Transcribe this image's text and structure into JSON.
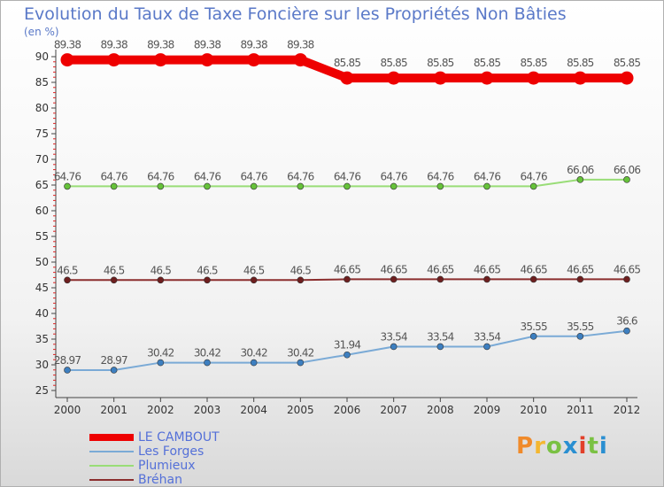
{
  "title": "Evolution du Taux de Taxe Foncière sur les Propriétés Non Bâties",
  "unit_label": "(en %)",
  "logo_text": "Proxiti",
  "chart_data": {
    "type": "line",
    "title": "Evolution du Taux de Taxe Foncière sur les Propriétés Non Bâties",
    "ylabel": "(en %)",
    "xlabel": "",
    "ylim": [
      25,
      90
    ],
    "yticks": [
      25,
      30,
      35,
      40,
      45,
      50,
      55,
      60,
      65,
      70,
      75,
      80,
      85,
      90
    ],
    "grid": false,
    "legend_position": "bottom-left",
    "x": [
      "2000",
      "2001",
      "2002",
      "2003",
      "2004",
      "2005",
      "2006",
      "2007",
      "2008",
      "2009",
      "2010",
      "2011",
      "2012"
    ],
    "series": [
      {
        "name": "LE CAMBOUT",
        "color": "#ee0000",
        "point_color": "#ee0000",
        "values": [
          89.38,
          89.38,
          89.38,
          89.38,
          89.38,
          89.38,
          85.85,
          85.85,
          85.85,
          85.85,
          85.85,
          85.85,
          85.85
        ],
        "labels": [
          "89.38",
          "89.38",
          "89.38",
          "89.38",
          "89.38",
          "89.38",
          "85.85",
          "85.85",
          "85.85",
          "85.85",
          "85.85",
          "85.85",
          "85.85"
        ]
      },
      {
        "name": "Les Forges",
        "color": "#7aaad6",
        "point_color": "#3d7fc0",
        "values": [
          28.97,
          28.97,
          30.42,
          30.42,
          30.42,
          30.42,
          31.94,
          33.54,
          33.54,
          33.54,
          35.55,
          35.55,
          36.6
        ],
        "labels": [
          "28.97",
          "28.97",
          "30.42",
          "30.42",
          "30.42",
          "30.42",
          "31.94",
          "33.54",
          "33.54",
          "33.54",
          "35.55",
          "35.55",
          "36.6"
        ]
      },
      {
        "name": "Plumieux",
        "color": "#99dd77",
        "point_color": "#66c23a",
        "values": [
          64.76,
          64.76,
          64.76,
          64.76,
          64.76,
          64.76,
          64.76,
          64.76,
          64.76,
          64.76,
          64.76,
          66.06,
          66.06
        ],
        "labels": [
          "64.76",
          "64.76",
          "64.76",
          "64.76",
          "64.76",
          "64.76",
          "64.76",
          "64.76",
          "64.76",
          "64.76",
          "64.76",
          "66.06",
          "66.06"
        ]
      },
      {
        "name": "Bréhan",
        "color": "#8b2e2e",
        "point_color": "#6e1f1f",
        "values": [
          46.5,
          46.5,
          46.5,
          46.5,
          46.5,
          46.5,
          46.65,
          46.65,
          46.65,
          46.65,
          46.65,
          46.65,
          46.65
        ],
        "labels": [
          "46.5",
          "46.5",
          "46.5",
          "46.5",
          "46.5",
          "46.5",
          "46.65",
          "46.65",
          "46.65",
          "46.65",
          "46.65",
          "46.65",
          "46.65"
        ]
      }
    ]
  }
}
